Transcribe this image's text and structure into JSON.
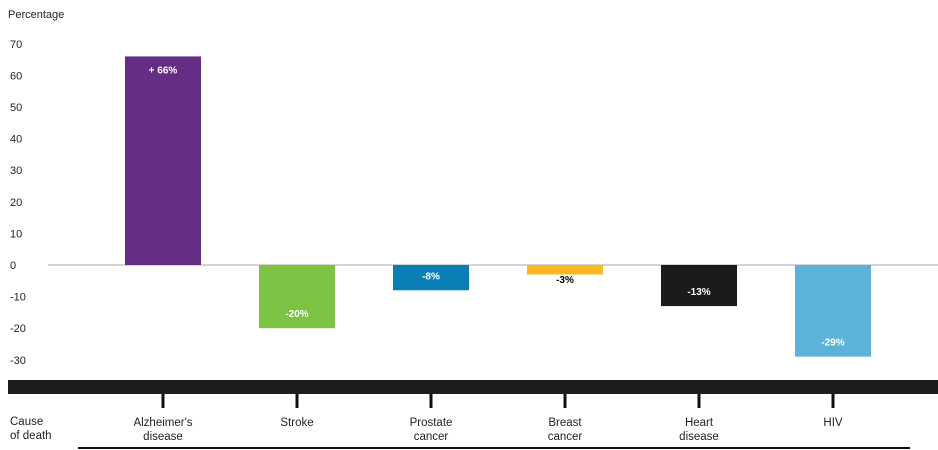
{
  "chart_data": {
    "type": "bar",
    "ylabel": "Percentage",
    "xlabel_lines": [
      "Cause",
      "of death"
    ],
    "ylim": [
      -35,
      75
    ],
    "yticks": [
      "70",
      "60",
      "50",
      "40",
      "30",
      "20",
      "10",
      "0",
      "-10",
      "-20",
      "-30"
    ],
    "categories": [
      [
        "Alzheimer's",
        "disease"
      ],
      [
        "Stroke"
      ],
      [
        "Prostate",
        "cancer"
      ],
      [
        "Breast",
        "cancer"
      ],
      [
        "Heart",
        "disease"
      ],
      [
        "HIV"
      ]
    ],
    "values": [
      66,
      -20,
      -8,
      -3,
      -13,
      -29
    ],
    "data_labels": [
      "+ 66%",
      "-20%",
      "-8%",
      "-3%",
      "-13%",
      "-29%"
    ],
    "colors": [
      "#652d86",
      "#7cc243",
      "#0a7fb5",
      "#fbb820",
      "#1b1b1b",
      "#5db2da"
    ],
    "label_colors": [
      "#ffffff",
      "#ffffff",
      "#ffffff",
      "#000000",
      "#ffffff",
      "#ffffff"
    ],
    "zero_line_color": "#aaaaaa",
    "axis_band_color": "#1c1c1c"
  }
}
